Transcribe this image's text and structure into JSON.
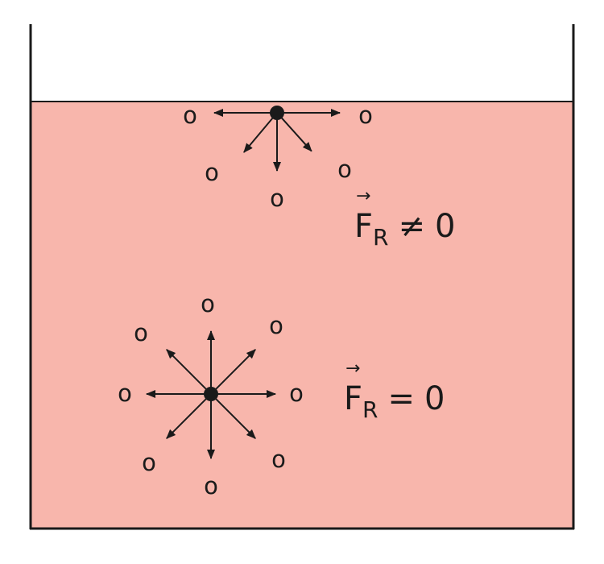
{
  "colors": {
    "liquid": "#f8b6ac",
    "ink": "#1a1a1a",
    "background": "#ffffff"
  },
  "molecule_label": "o",
  "surface_group": {
    "resultant": {
      "symbol": "F",
      "subscript": "R",
      "relation": "≠",
      "value": "0"
    }
  },
  "bulk_group": {
    "resultant": {
      "symbol": "F",
      "subscript": "R",
      "relation": "=",
      "value": "0"
    }
  }
}
